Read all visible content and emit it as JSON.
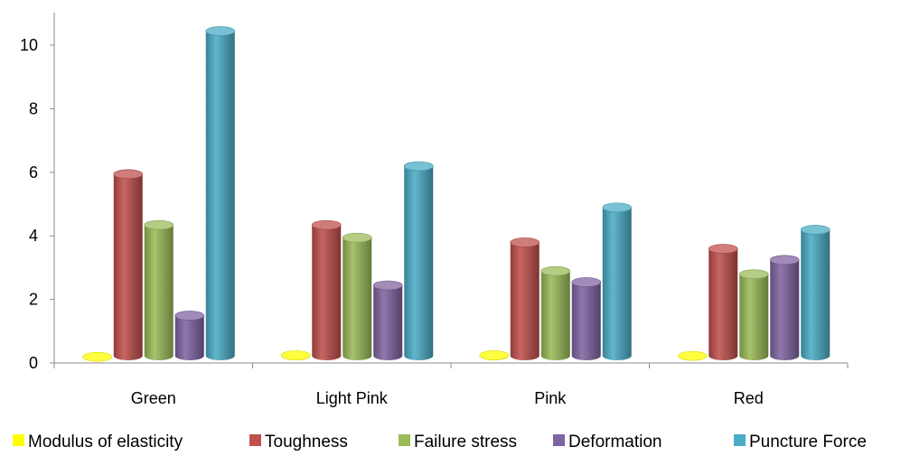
{
  "chart_data": {
    "type": "bar",
    "categories": [
      "Green",
      "Light Pink",
      "Pink",
      "Red"
    ],
    "series": [
      {
        "name": "Modulus of elasticity",
        "values": [
          0.25,
          0.3,
          0.3,
          0.28
        ],
        "color": "#ffff00"
      },
      {
        "name": "Toughness",
        "values": [
          6.0,
          4.4,
          3.85,
          3.65
        ],
        "color": "#c0504d"
      },
      {
        "name": "Failure stress",
        "values": [
          4.4,
          4.0,
          2.95,
          2.85
        ],
        "color": "#9bbb59"
      },
      {
        "name": "Deformation",
        "values": [
          1.55,
          2.5,
          2.6,
          3.3
        ],
        "color": "#8064a2"
      },
      {
        "name": "Puncture Force",
        "values": [
          10.5,
          6.25,
          4.95,
          4.25
        ],
        "color": "#4bacc6"
      }
    ],
    "yticks": [
      "0",
      "2",
      "4",
      "6",
      "8",
      "10"
    ],
    "ylim": [
      0,
      11
    ],
    "grid": false,
    "legend": "bottom",
    "title": "",
    "xlabel": "",
    "ylabel": ""
  }
}
